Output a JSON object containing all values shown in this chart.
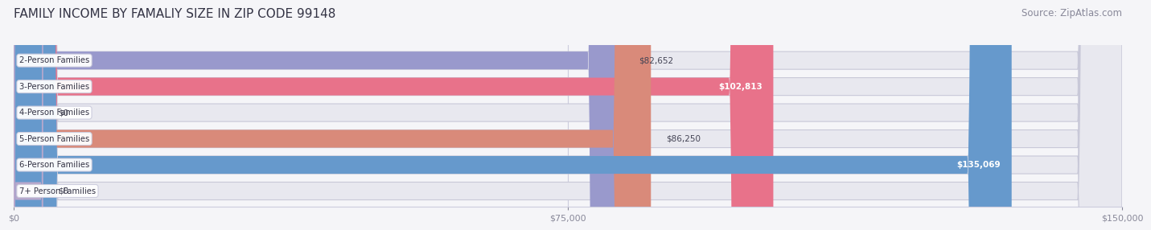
{
  "title": "FAMILY INCOME BY FAMALIY SIZE IN ZIP CODE 99148",
  "source": "Source: ZipAtlas.com",
  "categories": [
    "2-Person Families",
    "3-Person Families",
    "4-Person Families",
    "5-Person Families",
    "6-Person Families",
    "7+ Person Families"
  ],
  "values": [
    82652,
    102813,
    0,
    86250,
    135069,
    0
  ],
  "bar_colors": [
    "#9999cc",
    "#e8728a",
    "#f5c98a",
    "#d98a7a",
    "#6699cc",
    "#b8a8cc"
  ],
  "value_labels": [
    "$82,652",
    "$102,813",
    "$0",
    "$86,250",
    "$135,069",
    "$0"
  ],
  "label_inside": [
    false,
    true,
    false,
    false,
    true,
    false
  ],
  "xlim": [
    0,
    150000
  ],
  "xticks": [
    0,
    75000,
    150000
  ],
  "xtick_labels": [
    "$0",
    "$75,000",
    "$150,000"
  ],
  "background_color": "#f5f5f8",
  "bar_bg_color": "#e8e8ef",
  "title_fontsize": 11,
  "source_fontsize": 8.5
}
